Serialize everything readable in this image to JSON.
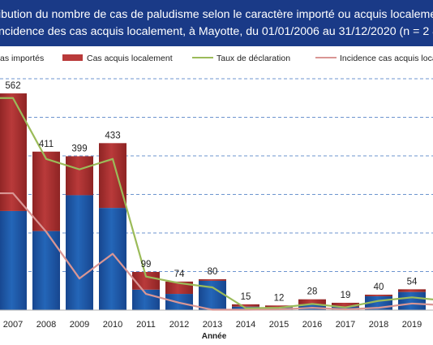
{
  "chart_data": {
    "type": "bar",
    "title_line1": "ibution du nombre de cas de paludisme selon le caractère importé ou acquis localement",
    "title_line2": "ncidence des cas acquis localement, à Mayotte, du 01/01/2006 au 31/12/2020  (n = 2 811",
    "xlabel": "Année",
    "categories": [
      "2007",
      "2008",
      "2009",
      "2010",
      "2011",
      "2012",
      "2013",
      "2014",
      "2015",
      "2016",
      "2017",
      "2018",
      "2019"
    ],
    "totals": [
      562,
      411,
      399,
      433,
      99,
      74,
      80,
      15,
      12,
      28,
      19,
      40,
      54
    ],
    "series": [
      {
        "name": "as importés",
        "values": [
          257,
          205,
          298,
          265,
          53,
          42,
          76,
          9,
          7,
          15,
          9,
          36,
          47
        ]
      },
      {
        "name": "Cas acquis localement",
        "values": [
          305,
          206,
          101,
          168,
          46,
          32,
          4,
          6,
          5,
          13,
          10,
          4,
          7
        ]
      }
    ],
    "lines": [
      {
        "name": "Taux de déclaration",
        "values": [
          550,
          392,
          365,
          392,
          87,
          70,
          59,
          5,
          6,
          16,
          7,
          24,
          33
        ]
      },
      {
        "name": "Incidence cas acquis loca",
        "values": [
          303,
          203,
          82,
          146,
          42,
          19,
          1,
          1,
          2,
          6,
          2,
          6,
          17
        ]
      }
    ],
    "ylim": [
      0,
      600
    ],
    "grid": true,
    "legend_position": "top",
    "colors": {
      "imported": "#2466b8",
      "local": "#b93a3a",
      "rate_line": "#9bbb59",
      "incidence_line": "#d99694",
      "header": "#1a3a87",
      "gridline": "#6d95cf"
    }
  }
}
